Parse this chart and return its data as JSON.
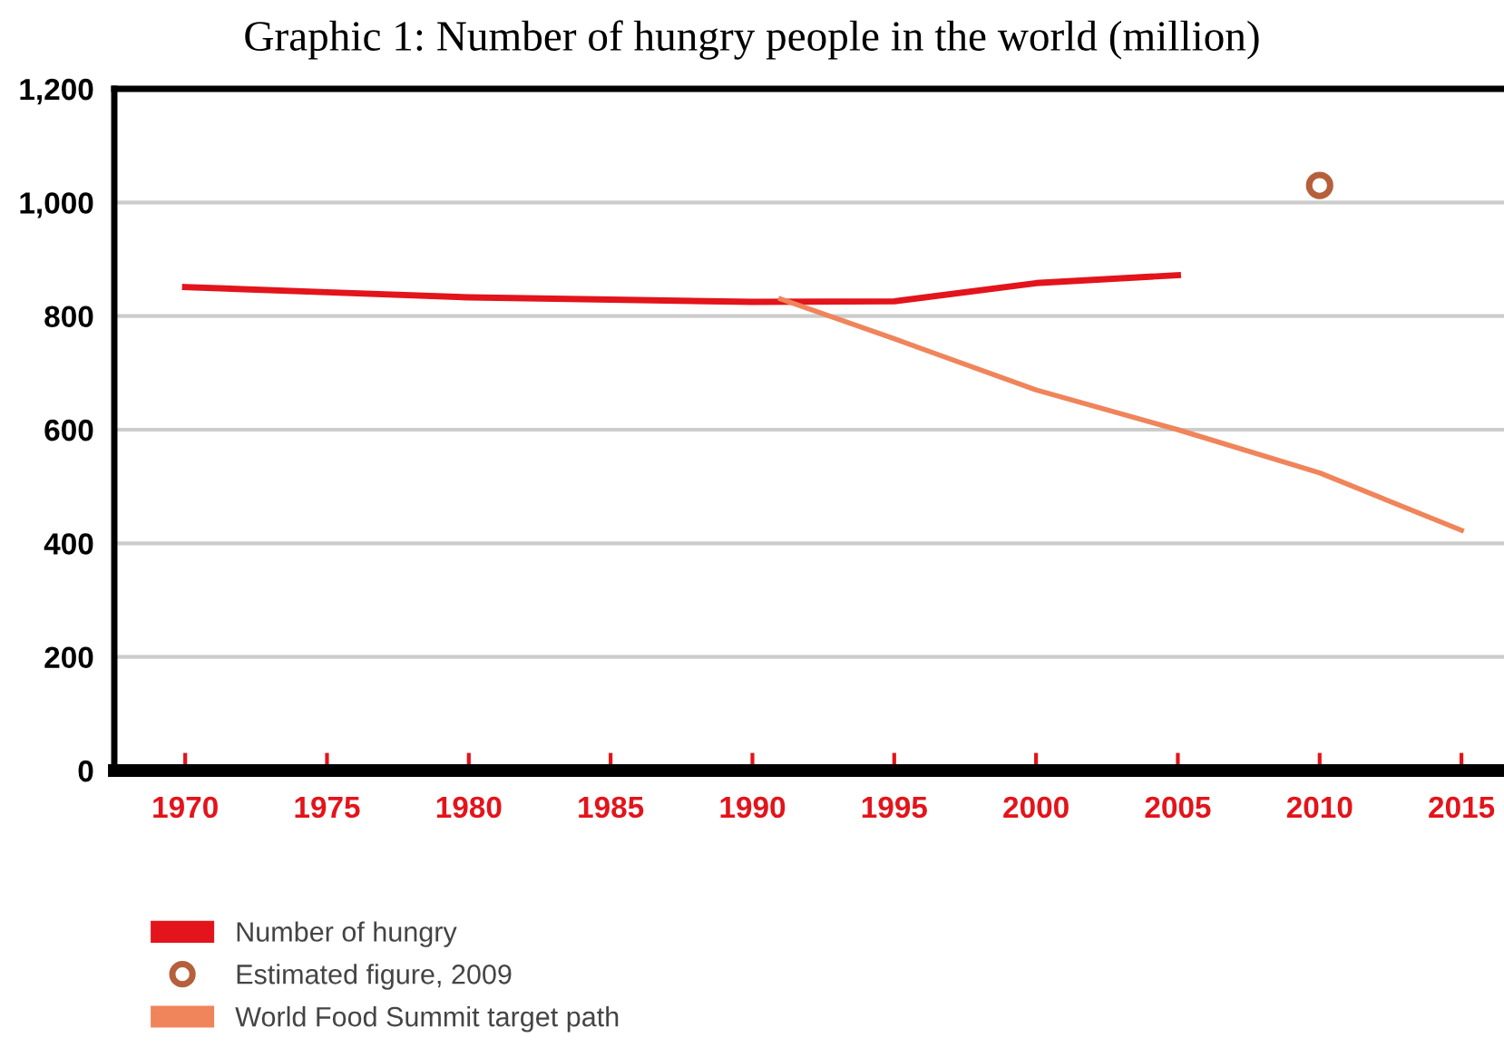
{
  "chart_data": {
    "type": "line",
    "title": "Graphic 1: Number of hungry people in the world (million)",
    "series": [
      {
        "name": "Number of hungry",
        "color": "#e3141b",
        "x": [
          1970,
          1975,
          1980,
          1985,
          1990,
          1995,
          2000,
          2005
        ],
        "values": [
          851,
          842,
          833,
          829,
          825,
          826,
          858,
          872
        ]
      },
      {
        "name": "Estimated figure, 2009",
        "color": "#b5603a",
        "type": "scatter",
        "marker": "circle",
        "x": [
          2010
        ],
        "values": [
          1030
        ]
      },
      {
        "name": "World Food Summit target path",
        "color": "#f0845a",
        "x": [
          1991,
          1995,
          2000,
          2005,
          2010,
          2015
        ],
        "values": [
          830,
          760,
          670,
          600,
          524,
          423
        ]
      }
    ],
    "xlim": [
      1967.5,
      2016.5
    ],
    "xticks": [
      1970,
      1975,
      1980,
      1985,
      1990,
      1995,
      2000,
      2005,
      2010,
      2015
    ],
    "ylim": [
      0,
      1200
    ],
    "yticks": [
      0,
      200,
      400,
      600,
      800,
      {
        "value": 1000,
        "label": "1,000"
      },
      {
        "value": 1200,
        "label": "1,200"
      }
    ],
    "grid": "y",
    "legend": "bottom left"
  }
}
